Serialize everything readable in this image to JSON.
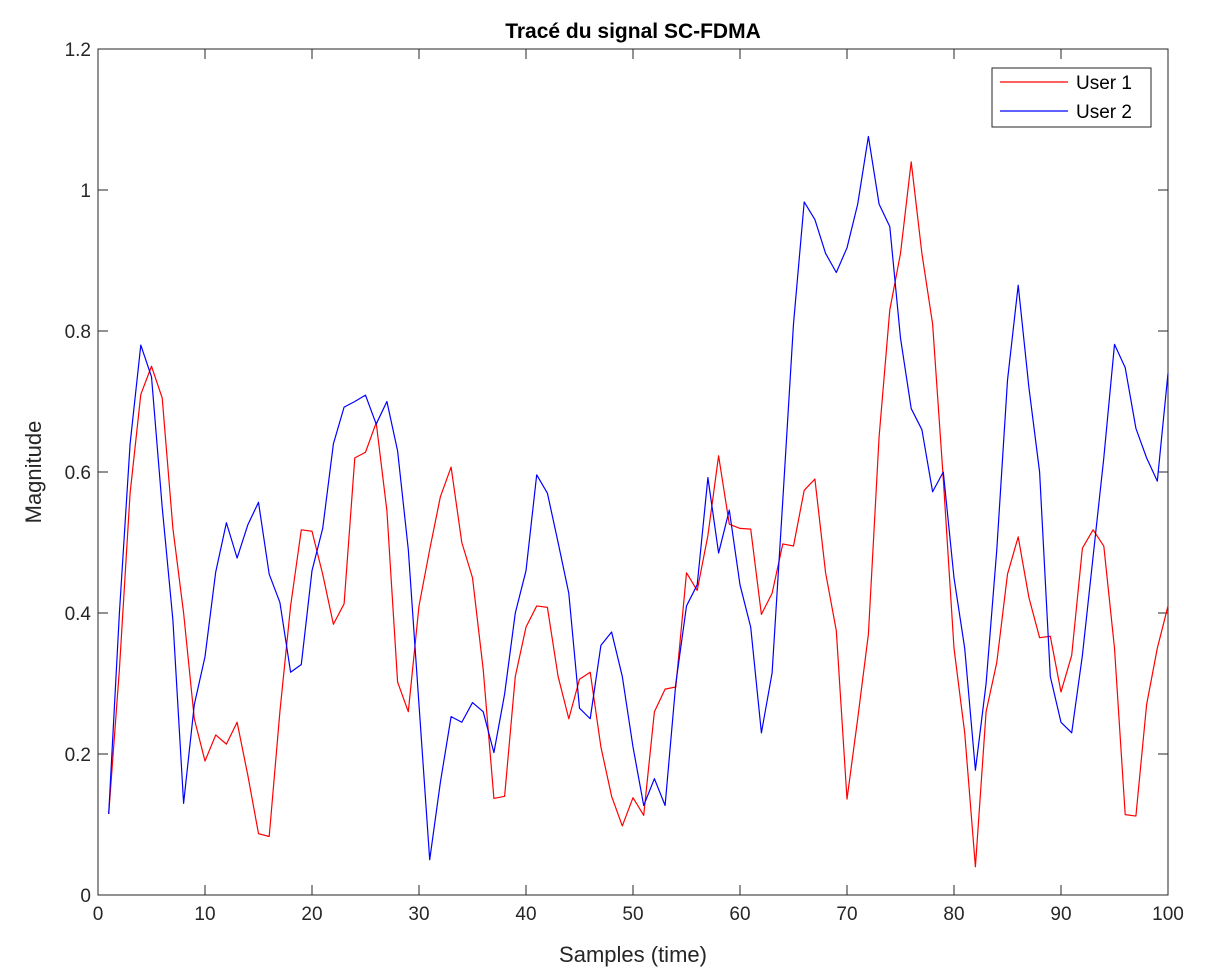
{
  "chart_data": {
    "type": "line",
    "title": "Tracé du signal SC-FDMA",
    "xlabel": "Samples (time)",
    "ylabel": "Magnitude",
    "xlim": [
      0,
      100
    ],
    "ylim": [
      0,
      1.2
    ],
    "xticks": [
      0,
      10,
      20,
      30,
      40,
      50,
      60,
      70,
      80,
      90,
      100
    ],
    "xtick_labels": [
      "0",
      "10",
      "20",
      "30",
      "40",
      "50",
      "60",
      "70",
      "80",
      "90",
      "100"
    ],
    "yticks": [
      0,
      0.2,
      0.4,
      0.6,
      0.8,
      1.0,
      1.2
    ],
    "ytick_labels": [
      "0",
      "0.2",
      "0.4",
      "0.6",
      "0.8",
      "1",
      "1.2"
    ],
    "grid": false,
    "legend_position": "top-right",
    "x_start": 1,
    "series": [
      {
        "name": "User 1",
        "color": "#ff0000",
        "values": [
          0.115,
          0.32,
          0.57,
          0.71,
          0.75,
          0.705,
          0.52,
          0.4,
          0.25,
          0.19,
          0.227,
          0.214,
          0.245,
          0.17,
          0.087,
          0.083,
          0.26,
          0.41,
          0.518,
          0.516,
          0.455,
          0.384,
          0.413,
          0.62,
          0.628,
          0.67,
          0.545,
          0.302,
          0.26,
          0.41,
          0.49,
          0.565,
          0.607,
          0.5,
          0.45,
          0.32,
          0.137,
          0.14,
          0.31,
          0.38,
          0.41,
          0.408,
          0.31,
          0.25,
          0.306,
          0.316,
          0.21,
          0.14,
          0.098,
          0.138,
          0.113,
          0.26,
          0.292,
          0.295,
          0.457,
          0.432,
          0.51,
          0.623,
          0.526,
          0.52,
          0.519,
          0.398,
          0.428,
          0.498,
          0.495,
          0.574,
          0.59,
          0.457,
          0.375,
          0.136,
          0.25,
          0.37,
          0.65,
          0.83,
          0.91,
          1.04,
          0.91,
          0.81,
          0.59,
          0.35,
          0.23,
          0.04,
          0.26,
          0.33,
          0.455,
          0.508,
          0.422,
          0.365,
          0.367,
          0.288,
          0.34,
          0.492,
          0.518,
          0.495,
          0.35,
          0.114,
          0.112,
          0.27,
          0.35,
          0.41
        ]
      },
      {
        "name": "User 2",
        "color": "#0000ff",
        "values": [
          0.115,
          0.4,
          0.64,
          0.78,
          0.735,
          0.55,
          0.39,
          0.13,
          0.27,
          0.338,
          0.458,
          0.528,
          0.478,
          0.525,
          0.557,
          0.455,
          0.415,
          0.316,
          0.327,
          0.46,
          0.52,
          0.64,
          0.692,
          0.7,
          0.709,
          0.668,
          0.7,
          0.63,
          0.49,
          0.27,
          0.05,
          0.16,
          0.253,
          0.245,
          0.273,
          0.26,
          0.202,
          0.285,
          0.4,
          0.46,
          0.596,
          0.57,
          0.5,
          0.428,
          0.265,
          0.25,
          0.354,
          0.373,
          0.31,
          0.21,
          0.127,
          0.165,
          0.127,
          0.3,
          0.41,
          0.44,
          0.592,
          0.485,
          0.546,
          0.44,
          0.38,
          0.23,
          0.315,
          0.56,
          0.81,
          0.983,
          0.958,
          0.91,
          0.883,
          0.918,
          0.98,
          1.076,
          0.98,
          0.948,
          0.79,
          0.69,
          0.66,
          0.572,
          0.6,
          0.45,
          0.35,
          0.177,
          0.3,
          0.49,
          0.73,
          0.865,
          0.72,
          0.6,
          0.31,
          0.245,
          0.23,
          0.34,
          0.48,
          0.62,
          0.781,
          0.748,
          0.662,
          0.62,
          0.587,
          0.74
        ]
      }
    ]
  }
}
